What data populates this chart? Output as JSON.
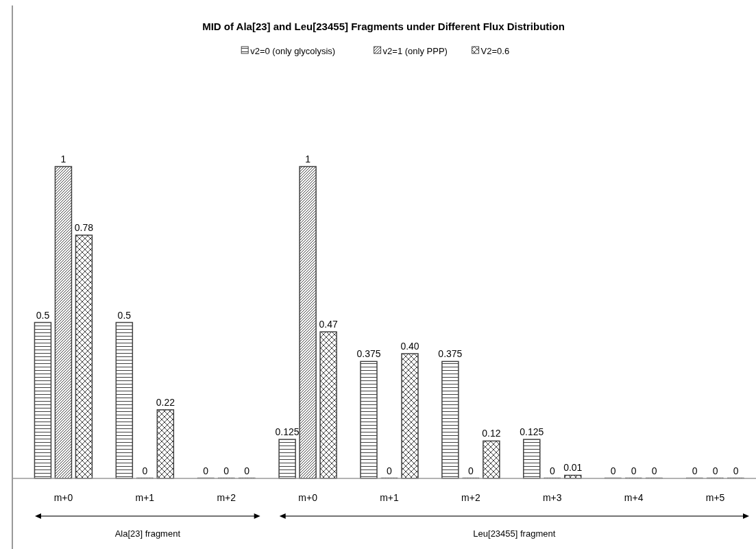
{
  "chart_data": {
    "type": "bar",
    "title": "MID of Ala[23] and Leu[23455] Fragments under Different Flux Distribution",
    "categories": [
      "m+0",
      "m+1",
      "m+2",
      "m+0",
      "m+1",
      "m+2",
      "m+3",
      "m+4",
      "m+5"
    ],
    "series": [
      {
        "name": "v2=0 (only glycolysis)",
        "color": "#404040",
        "values": [
          0.5,
          0.5,
          0,
          0.125,
          0.375,
          0.375,
          0.125,
          0,
          0
        ],
        "value_labels": [
          "0.5",
          "0.5",
          "0",
          "0.125",
          "0.375",
          "0.375",
          "0.125",
          "0",
          "0"
        ]
      },
      {
        "name": "v2=1 (only PPP)",
        "color": "#404040",
        "values": [
          1,
          0,
          0,
          1,
          0,
          0,
          0,
          0,
          0
        ],
        "value_labels": [
          "1",
          "0",
          "0",
          "1",
          "0",
          "0",
          "0",
          "0",
          "0"
        ]
      },
      {
        "name": "V2=0.6",
        "color": "#404040",
        "values": [
          0.78,
          0.22,
          0,
          0.47,
          0.4,
          0.12,
          0.01,
          0,
          0
        ],
        "value_labels": [
          "0.78",
          "0.22",
          "0",
          "0.47",
          "0.40",
          "0.12",
          "0.01",
          "0",
          "0"
        ]
      }
    ],
    "legend": "top",
    "grid": false,
    "annotations": [
      "Ala[23] fragment",
      "Leu[23455] fragment"
    ]
  }
}
